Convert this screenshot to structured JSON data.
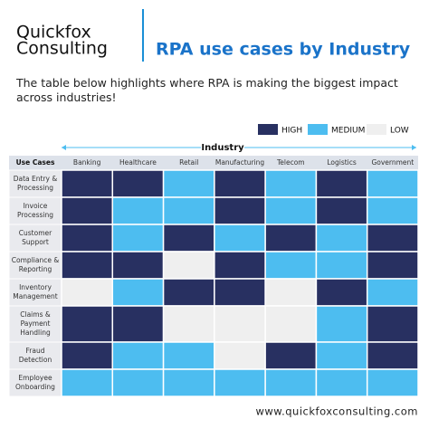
{
  "header": {
    "brand_line1": "Quickfox",
    "brand_line2": "Consulting",
    "title": "RPA use cases by Industry"
  },
  "intro": "The table below highlights where RPA is making the biggest impact across industries!",
  "legend": [
    {
      "label": "HIGH",
      "color": "#283061"
    },
    {
      "label": "MEDIUM",
      "color": "#4dbdf0"
    },
    {
      "label": "LOW",
      "color": "#efefef"
    }
  ],
  "table": {
    "group_label": "Industry",
    "corner": "Use Cases",
    "columns": [
      "Banking",
      "Healthcare",
      "Retail",
      "Manufacturing",
      "Telecom",
      "Logistics",
      "Government"
    ],
    "rows": [
      {
        "label": [
          "Data Entry &",
          "Processing"
        ],
        "levels": [
          0,
          0,
          1,
          0,
          1,
          0,
          1
        ]
      },
      {
        "label": [
          "Invoice",
          "Processing"
        ],
        "levels": [
          0,
          1,
          1,
          0,
          1,
          0,
          1
        ]
      },
      {
        "label": [
          "Customer",
          "Support"
        ],
        "levels": [
          0,
          1,
          0,
          1,
          0,
          1,
          0
        ]
      },
      {
        "label": [
          "Compliance &",
          "Reporting"
        ],
        "levels": [
          0,
          0,
          2,
          0,
          1,
          1,
          0
        ]
      },
      {
        "label": [
          "Inventory",
          "Management"
        ],
        "levels": [
          2,
          1,
          0,
          0,
          2,
          0,
          1
        ]
      },
      {
        "label": [
          "Claims &",
          "Payment",
          "Handling"
        ],
        "levels": [
          0,
          0,
          2,
          2,
          2,
          1,
          0
        ]
      },
      {
        "label": [
          "Fraud",
          "Detection"
        ],
        "levels": [
          0,
          1,
          1,
          2,
          0,
          1,
          0
        ]
      },
      {
        "label": [
          "Employee",
          "Onboarding"
        ],
        "levels": [
          1,
          1,
          1,
          1,
          1,
          1,
          1
        ]
      }
    ]
  },
  "footer": "www.quickfoxconsulting.com"
}
